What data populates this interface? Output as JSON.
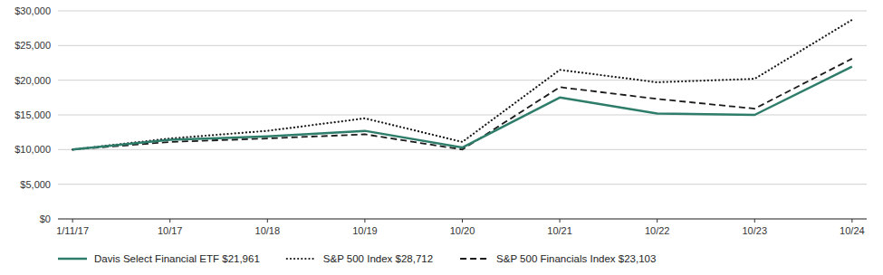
{
  "chart_data": {
    "type": "line",
    "categories": [
      "1/11/17",
      "10/17",
      "10/18",
      "10/19",
      "10/20",
      "10/21",
      "10/22",
      "10/23",
      "10/24"
    ],
    "series": [
      {
        "name": "Davis Select Financial ETF $21,961",
        "color": "#2e7d6b",
        "line_style": "solid",
        "values": [
          10000,
          11400,
          11900,
          12700,
          10300,
          17500,
          15200,
          15000,
          21961
        ]
      },
      {
        "name": "S&P 500 Index $28,712",
        "color": "#1a1a1a",
        "line_style": "dotted",
        "values": [
          10000,
          11600,
          12700,
          14500,
          11100,
          21500,
          19700,
          20200,
          28712
        ]
      },
      {
        "name": "S&P 500 Financials Index $23,103",
        "color": "#1a1a1a",
        "line_style": "dashed",
        "values": [
          10000,
          11100,
          11600,
          12200,
          10000,
          19000,
          17300,
          15900,
          23103
        ]
      }
    ],
    "ylim": [
      0,
      30000
    ],
    "yticks": [
      {
        "value": 0,
        "label": "$0"
      },
      {
        "value": 5000,
        "label": "$5,000"
      },
      {
        "value": 10000,
        "label": "$10,000"
      },
      {
        "value": 15000,
        "label": "$15,000"
      },
      {
        "value": 20000,
        "label": "$20,000"
      },
      {
        "value": 25000,
        "label": "$25,000"
      },
      {
        "value": 30000,
        "label": "$30,000"
      }
    ],
    "grid": true,
    "legend": "bottom"
  }
}
